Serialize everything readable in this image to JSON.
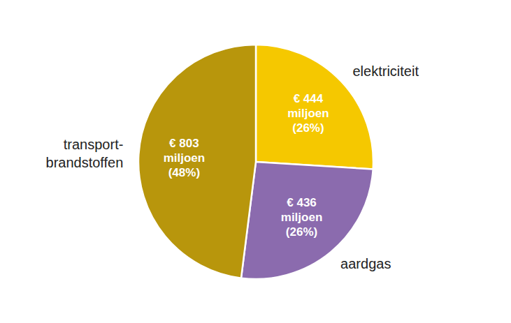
{
  "chart_data": {
    "type": "pie",
    "categories": [
      "elektriciteit",
      "aardgas",
      "transport-\nbrandstoffen"
    ],
    "values": [
      26,
      26,
      48
    ],
    "value_labels": [
      "€ 444\nmiljoen\n(26%)",
      "€ 436\nmiljoen\n(26%)",
      "€ 803\nmiljoen\n(48%)"
    ],
    "colors": [
      "#F5C800",
      "#8B6BAE",
      "#B8960C"
    ],
    "data_labels": true
  }
}
